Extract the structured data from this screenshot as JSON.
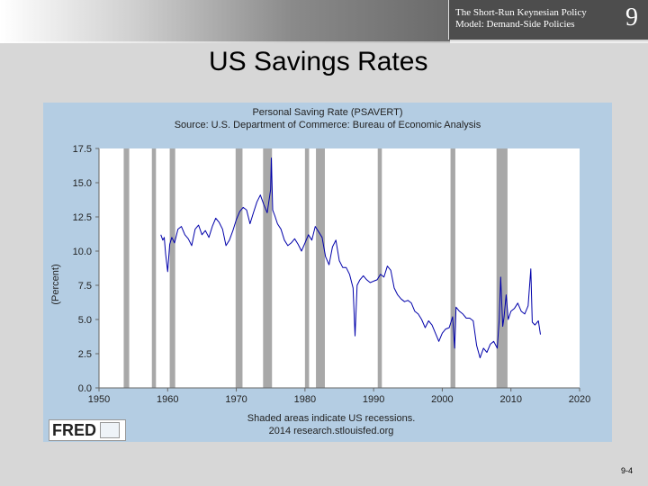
{
  "header": {
    "course_title_line1": "The Short-Run Keynesian Policy",
    "course_title_line2": "Model: Demand-Side Policies",
    "chapter_number": "9"
  },
  "slide": {
    "title": "US Savings Rates",
    "page_number": "9-4"
  },
  "chart_data": {
    "type": "line",
    "title": "Personal Saving Rate (PSAVERT)",
    "subtitle": "Source: U.S. Department of Commerce: Bureau of Economic Analysis",
    "xlabel": "",
    "ylabel": "(Percent)",
    "xlim": [
      1950,
      2020
    ],
    "ylim": [
      0.0,
      17.5
    ],
    "x_ticks": [
      "1950",
      "1960",
      "1970",
      "1980",
      "1990",
      "2000",
      "2010",
      "2020"
    ],
    "y_ticks": [
      "0.0",
      "2.5",
      "5.0",
      "7.5",
      "10.0",
      "12.5",
      "15.0",
      "17.5"
    ],
    "grid": false,
    "line_color": "#0000aa",
    "recession_color": "#a8a8a8",
    "recessions": [
      [
        1953.6,
        1954.4
      ],
      [
        1957.7,
        1958.3
      ],
      [
        1960.3,
        1961.1
      ],
      [
        1969.9,
        1970.9
      ],
      [
        1973.9,
        1975.2
      ],
      [
        1980.0,
        1980.6
      ],
      [
        1981.6,
        1982.9
      ],
      [
        1990.6,
        1991.2
      ],
      [
        2001.2,
        2001.9
      ],
      [
        2007.9,
        2009.5
      ]
    ],
    "series": [
      {
        "points": [
          [
            1959.0,
            11.2
          ],
          [
            1959.3,
            10.8
          ],
          [
            1959.5,
            11.0
          ],
          [
            1959.7,
            9.8
          ],
          [
            1960.0,
            8.5
          ],
          [
            1960.3,
            10.5
          ],
          [
            1960.6,
            11.0
          ],
          [
            1961.0,
            10.6
          ],
          [
            1961.5,
            11.6
          ],
          [
            1962.0,
            11.8
          ],
          [
            1962.5,
            11.2
          ],
          [
            1963.0,
            10.9
          ],
          [
            1963.5,
            10.4
          ],
          [
            1964.0,
            11.6
          ],
          [
            1964.5,
            11.9
          ],
          [
            1965.0,
            11.2
          ],
          [
            1965.5,
            11.5
          ],
          [
            1966.0,
            11.0
          ],
          [
            1966.5,
            11.8
          ],
          [
            1967.0,
            12.4
          ],
          [
            1967.5,
            12.1
          ],
          [
            1968.0,
            11.6
          ],
          [
            1968.5,
            10.4
          ],
          [
            1969.0,
            10.8
          ],
          [
            1969.5,
            11.5
          ],
          [
            1970.0,
            12.3
          ],
          [
            1970.5,
            12.9
          ],
          [
            1971.0,
            13.2
          ],
          [
            1971.5,
            13.0
          ],
          [
            1972.0,
            12.0
          ],
          [
            1972.5,
            12.8
          ],
          [
            1973.0,
            13.6
          ],
          [
            1973.5,
            14.1
          ],
          [
            1974.0,
            13.4
          ],
          [
            1974.5,
            12.8
          ],
          [
            1975.0,
            14.5
          ],
          [
            1975.1,
            16.8
          ],
          [
            1975.3,
            13.0
          ],
          [
            1975.6,
            12.6
          ],
          [
            1976.0,
            12.0
          ],
          [
            1976.5,
            11.6
          ],
          [
            1977.0,
            10.8
          ],
          [
            1977.5,
            10.4
          ],
          [
            1978.0,
            10.6
          ],
          [
            1978.5,
            10.9
          ],
          [
            1979.0,
            10.5
          ],
          [
            1979.5,
            10.0
          ],
          [
            1980.0,
            10.6
          ],
          [
            1980.5,
            11.2
          ],
          [
            1981.0,
            10.8
          ],
          [
            1981.5,
            11.8
          ],
          [
            1982.0,
            11.4
          ],
          [
            1982.5,
            11.0
          ],
          [
            1983.0,
            9.6
          ],
          [
            1983.5,
            9.0
          ],
          [
            1984.0,
            10.3
          ],
          [
            1984.5,
            10.8
          ],
          [
            1985.0,
            9.3
          ],
          [
            1985.5,
            8.8
          ],
          [
            1986.0,
            8.8
          ],
          [
            1986.5,
            8.3
          ],
          [
            1987.0,
            7.3
          ],
          [
            1987.3,
            3.8
          ],
          [
            1987.6,
            7.5
          ],
          [
            1988.0,
            7.9
          ],
          [
            1988.5,
            8.2
          ],
          [
            1989.0,
            7.9
          ],
          [
            1989.5,
            7.7
          ],
          [
            1990.0,
            7.8
          ],
          [
            1990.5,
            7.9
          ],
          [
            1991.0,
            8.3
          ],
          [
            1991.5,
            8.1
          ],
          [
            1992.0,
            8.9
          ],
          [
            1992.5,
            8.6
          ],
          [
            1993.0,
            7.3
          ],
          [
            1993.5,
            6.8
          ],
          [
            1994.0,
            6.5
          ],
          [
            1994.5,
            6.3
          ],
          [
            1995.0,
            6.4
          ],
          [
            1995.5,
            6.2
          ],
          [
            1996.0,
            5.6
          ],
          [
            1996.5,
            5.4
          ],
          [
            1997.0,
            5.0
          ],
          [
            1997.5,
            4.4
          ],
          [
            1998.0,
            4.9
          ],
          [
            1998.5,
            4.6
          ],
          [
            1999.0,
            4.0
          ],
          [
            1999.5,
            3.4
          ],
          [
            2000.0,
            4.0
          ],
          [
            2000.5,
            4.3
          ],
          [
            2001.0,
            4.4
          ],
          [
            2001.5,
            5.2
          ],
          [
            2001.8,
            2.9
          ],
          [
            2002.0,
            5.9
          ],
          [
            2002.5,
            5.6
          ],
          [
            2003.0,
            5.4
          ],
          [
            2003.5,
            5.1
          ],
          [
            2004.0,
            5.1
          ],
          [
            2004.5,
            4.9
          ],
          [
            2005.0,
            3.1
          ],
          [
            2005.5,
            2.2
          ],
          [
            2006.0,
            2.9
          ],
          [
            2006.5,
            2.6
          ],
          [
            2007.0,
            3.2
          ],
          [
            2007.5,
            3.4
          ],
          [
            2008.0,
            2.9
          ],
          [
            2008.3,
            5.0
          ],
          [
            2008.5,
            8.1
          ],
          [
            2008.8,
            4.5
          ],
          [
            2009.0,
            5.2
          ],
          [
            2009.3,
            6.8
          ],
          [
            2009.6,
            5.0
          ],
          [
            2010.0,
            5.6
          ],
          [
            2010.5,
            5.8
          ],
          [
            2011.0,
            6.2
          ],
          [
            2011.5,
            5.6
          ],
          [
            2012.0,
            5.4
          ],
          [
            2012.5,
            6.0
          ],
          [
            2012.9,
            8.7
          ],
          [
            2013.1,
            4.8
          ],
          [
            2013.5,
            4.6
          ],
          [
            2014.0,
            4.9
          ],
          [
            2014.3,
            3.9
          ]
        ]
      }
    ],
    "footnote_line1": "Shaded areas indicate US recessions.",
    "footnote_line2": "2014 research.stlouisfed.org",
    "brand": "FRED"
  }
}
